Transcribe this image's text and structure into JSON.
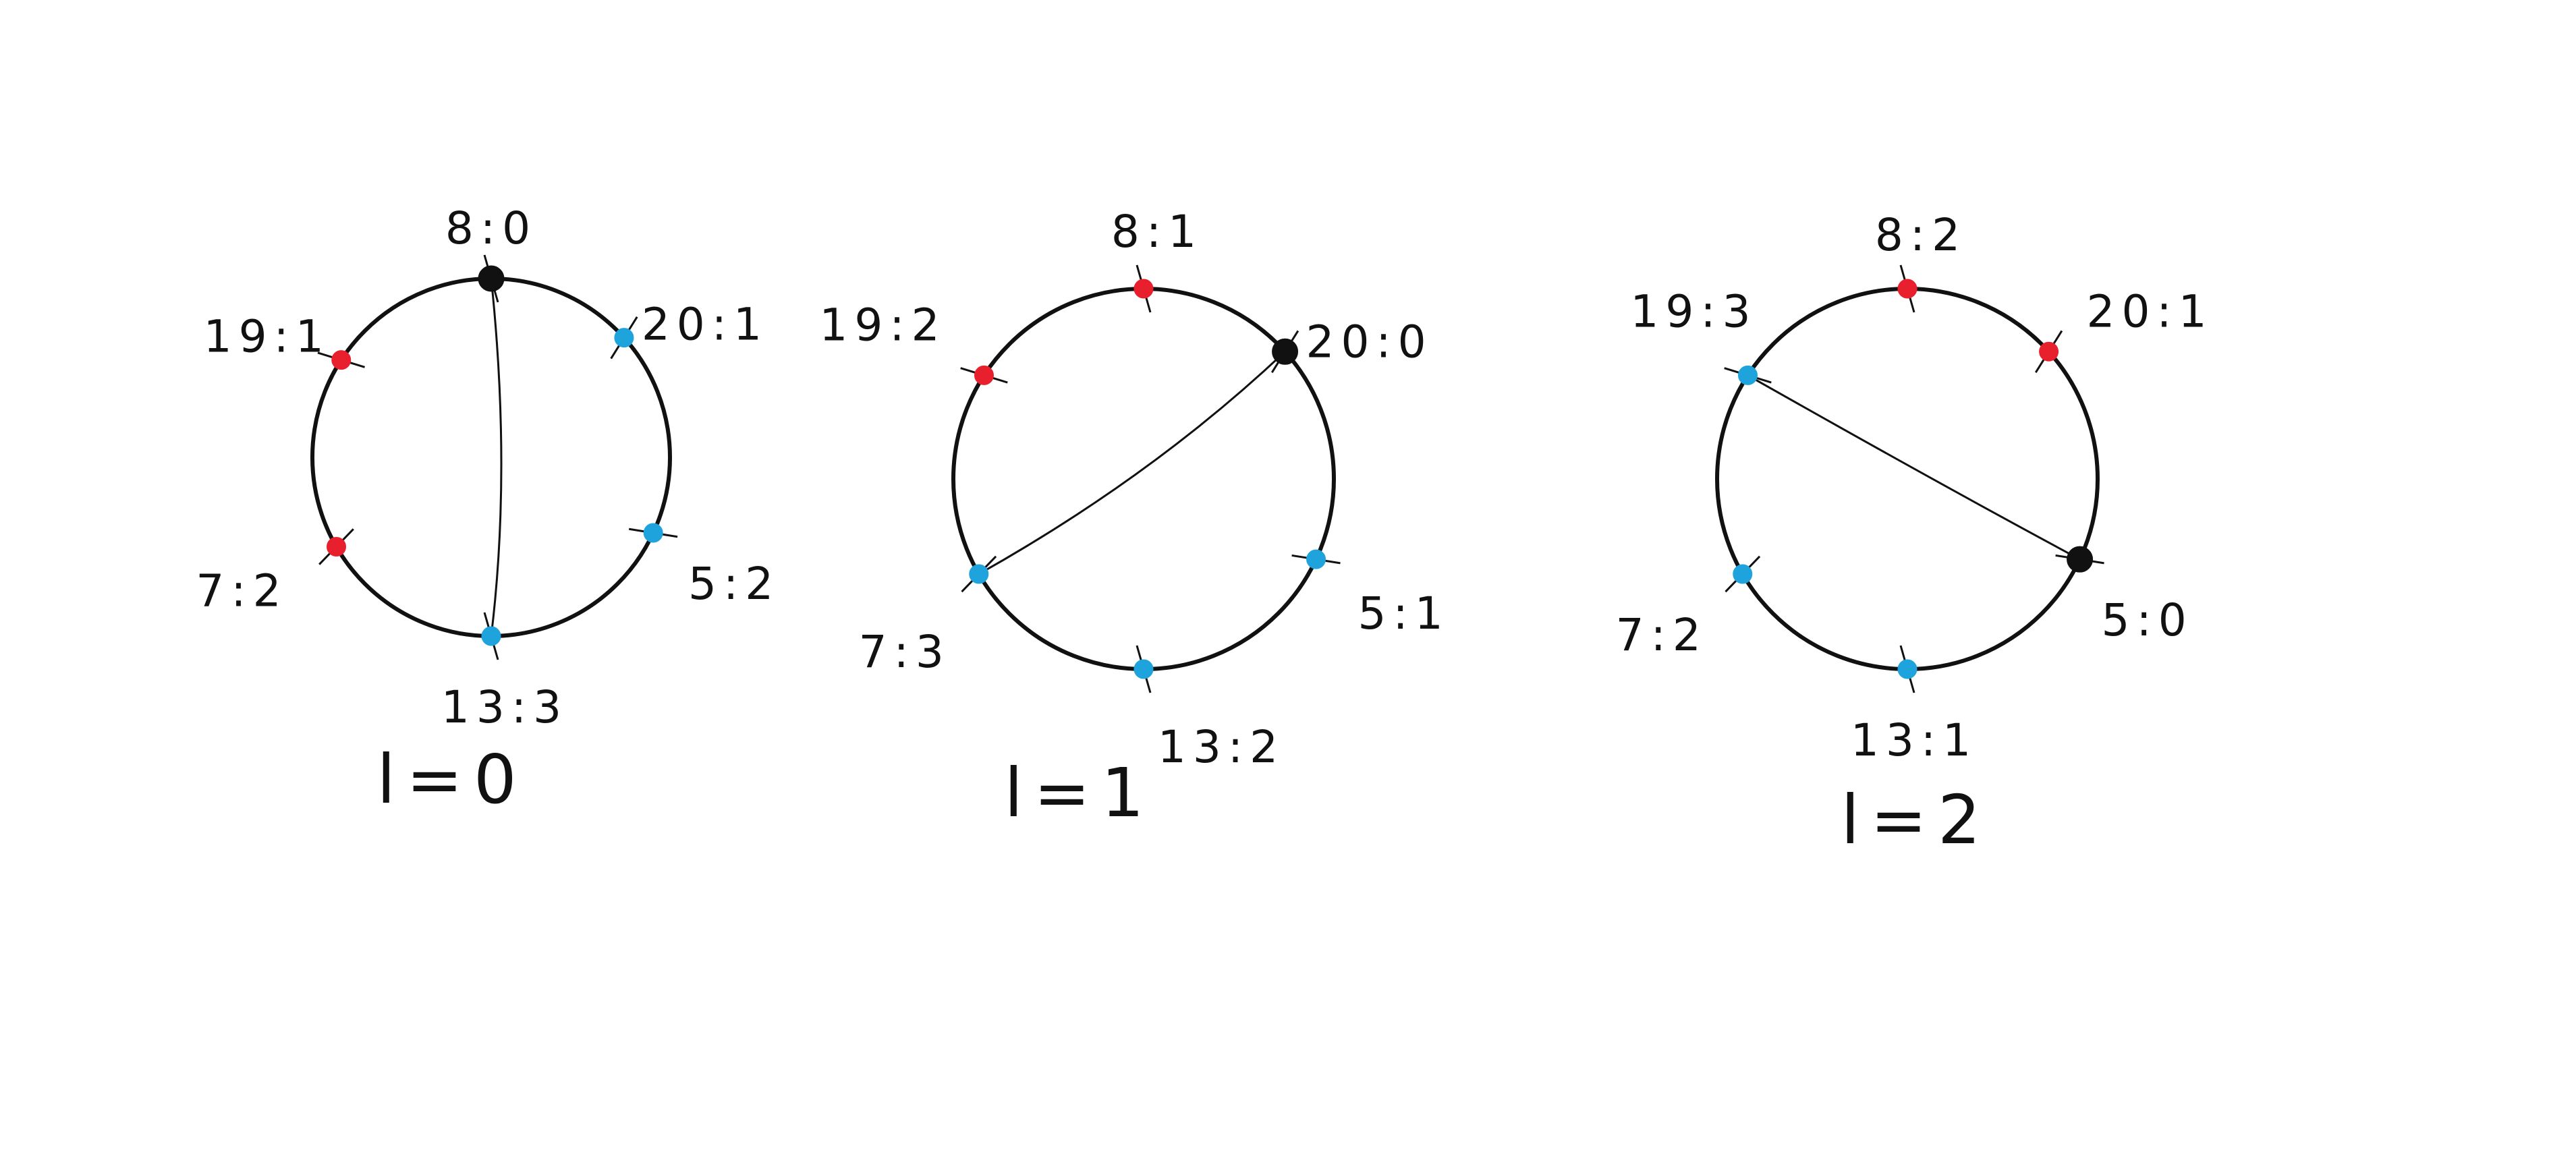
{
  "colors": {
    "background": "#ffffff",
    "ink": "#111111",
    "red": "#e8202e",
    "blue": "#1ea3dd",
    "black": "#111111"
  },
  "diagrams": [
    {
      "caption": "l=0",
      "nodes": [
        {
          "label": "8:0",
          "color": "black"
        },
        {
          "label": "20:1",
          "color": "blue"
        },
        {
          "label": "5:2",
          "color": "blue"
        },
        {
          "label": "13:3",
          "color": "blue"
        },
        {
          "label": "7:2",
          "color": "red"
        },
        {
          "label": "19:1",
          "color": "red"
        }
      ]
    },
    {
      "caption": "l=1",
      "nodes": [
        {
          "label": "8:1",
          "color": "red"
        },
        {
          "label": "20:0",
          "color": "black"
        },
        {
          "label": "5:1",
          "color": "blue"
        },
        {
          "label": "13:2",
          "color": "blue"
        },
        {
          "label": "7:3",
          "color": "blue"
        },
        {
          "label": "19:2",
          "color": "red"
        }
      ]
    },
    {
      "caption": "l=2",
      "nodes": [
        {
          "label": "8:2",
          "color": "red"
        },
        {
          "label": "20:1",
          "color": "red"
        },
        {
          "label": "5:0",
          "color": "black"
        },
        {
          "label": "13:1",
          "color": "blue"
        },
        {
          "label": "7:2",
          "color": "blue"
        },
        {
          "label": "19:3",
          "color": "blue"
        }
      ]
    }
  ]
}
